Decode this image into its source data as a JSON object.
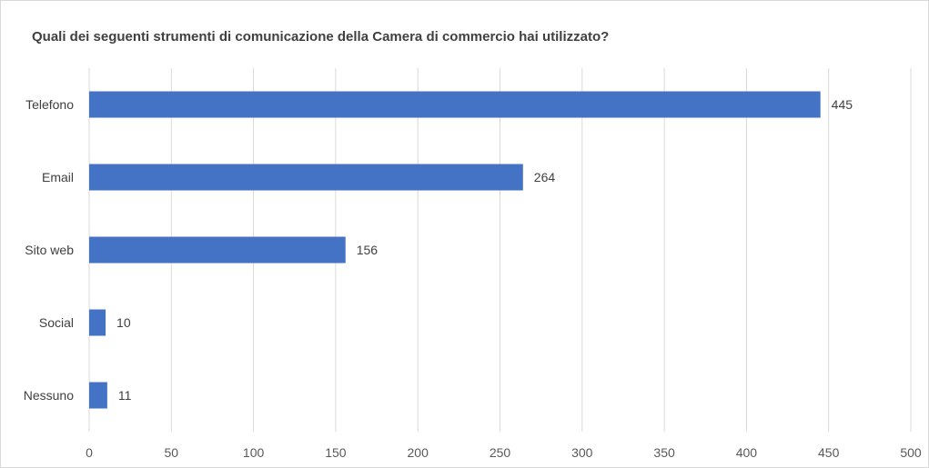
{
  "chart_data": {
    "type": "bar",
    "orientation": "horizontal",
    "title": "Quali dei seguenti strumenti di comunicazione della Camera di commercio hai utilizzato?",
    "xlabel": "",
    "ylabel": "",
    "categories": [
      "Telefono",
      "Email",
      "Sito web",
      "Social",
      "Nessuno"
    ],
    "values": [
      445,
      264,
      156,
      10,
      11
    ],
    "xlim": [
      0,
      500
    ],
    "xticks": [
      0,
      50,
      100,
      150,
      200,
      250,
      300,
      350,
      400,
      450,
      500
    ],
    "grid": "vertical",
    "legend": "none",
    "data_labels": true,
    "colors": {
      "bar": "#4472C4",
      "grid": "#d9d9d9",
      "text": "#404040"
    }
  }
}
